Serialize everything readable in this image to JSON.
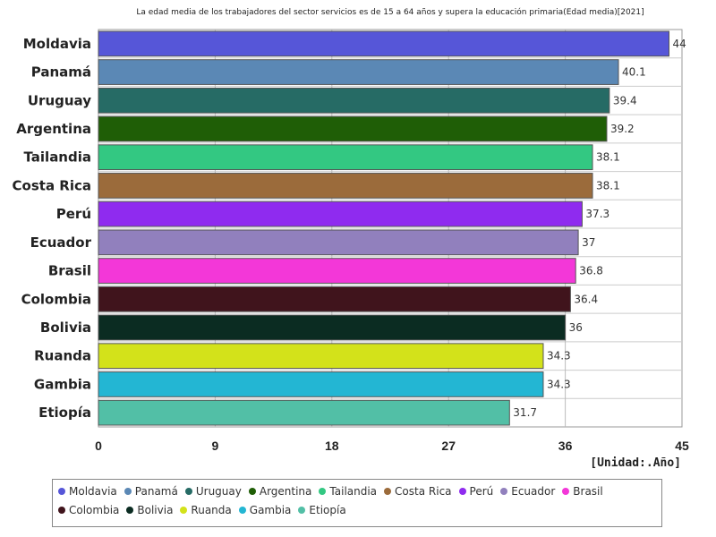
{
  "chart_data": {
    "type": "bar",
    "orientation": "horizontal",
    "title": "La edad media de los trabajadores del sector servicios es de 15 a 64 años y supera la educación primaria(Edad media)[2021]",
    "unit_label": "[Unidad:.Año]",
    "xlim": [
      0,
      45
    ],
    "xticks": [
      0,
      9,
      18,
      27,
      36,
      45
    ],
    "grid": true,
    "legend_position": "bottom",
    "categories": [
      "Moldavia",
      "Panamá",
      "Uruguay",
      "Argentina",
      "Tailandia",
      "Costa Rica",
      "Perú",
      "Ecuador",
      "Brasil",
      "Colombia",
      "Bolivia",
      "Ruanda",
      "Gambia",
      "Etiopía"
    ],
    "values": [
      44,
      40.1,
      39.4,
      39.2,
      38.1,
      38.1,
      37.3,
      37,
      36.8,
      36.4,
      36,
      34.3,
      34.3,
      31.7
    ],
    "value_labels": [
      "44",
      "40.1",
      "39.4",
      "39.2",
      "38.1",
      "38.1",
      "37.3",
      "37",
      "36.8",
      "36.4",
      "36",
      "34.3",
      "34.3",
      "31.7"
    ],
    "colors": [
      "#5656d8",
      "#5b88b5",
      "#266b65",
      "#1f5e06",
      "#33c882",
      "#9b6b3b",
      "#8f2bef",
      "#9180bd",
      "#f337d8",
      "#40141c",
      "#0b2c22",
      "#d3e21a",
      "#23b6d3",
      "#52bfa6"
    ]
  }
}
